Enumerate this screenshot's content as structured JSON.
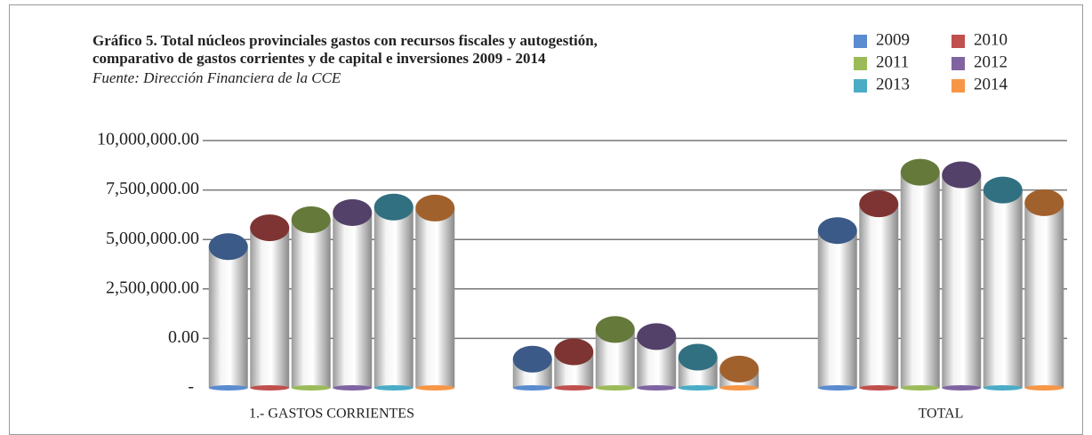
{
  "chart_data": {
    "type": "bar",
    "title": "Gráfico 5. Total núcleos provinciales gastos con recursos fiscales y autogestión,",
    "subtitle": "comparativo de gastos corrientes y de capital e inversiones 2009 - 2014",
    "source": "Fuente: Dirección Financiera de la CCE",
    "categories": [
      "1.- GASTOS CORRIENTES",
      null,
      "TOTAL"
    ],
    "series": [
      {
        "name": "2009",
        "color": "#5b8bd0",
        "values": [
          4640000,
          -1050000,
          5450000
        ]
      },
      {
        "name": "2010",
        "color": "#c0504d",
        "values": [
          5590000,
          -680000,
          6800000
        ]
      },
      {
        "name": "2011",
        "color": "#9bbb59",
        "values": [
          6000000,
          450000,
          8400000
        ]
      },
      {
        "name": "2012",
        "color": "#8064a2",
        "values": [
          6360000,
          90000,
          8270000
        ]
      },
      {
        "name": "2013",
        "color": "#4bacc6",
        "values": [
          6640000,
          -950000,
          7500000
        ]
      },
      {
        "name": "2014",
        "color": "#f79646",
        "values": [
          6590000,
          -1550000,
          6860000
        ]
      }
    ],
    "ylim": [
      -2500000,
      10000000
    ],
    "yticks": [
      {
        "value": -2500000,
        "label": "-"
      },
      {
        "value": 0,
        "label": "0.00"
      },
      {
        "value": 2500000,
        "label": "2,500,000.00"
      },
      {
        "value": 5000000,
        "label": "5,000,000.00"
      },
      {
        "value": 7500000,
        "label": "7,500,000.00"
      },
      {
        "value": 10000000,
        "label": "10,000,000.00"
      }
    ],
    "grid": true,
    "legend": "top-right"
  }
}
